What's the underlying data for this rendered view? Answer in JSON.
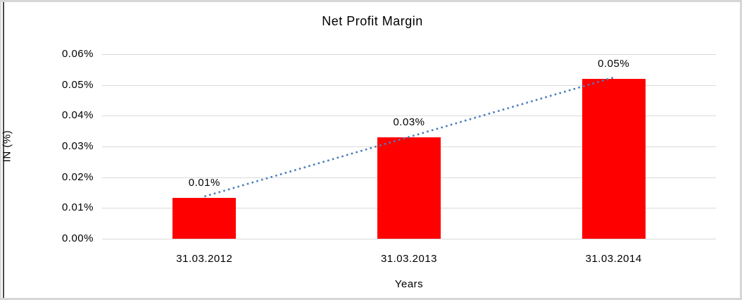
{
  "chart_data": {
    "type": "bar",
    "title": "Net Profit Margin",
    "xlabel": "Years",
    "ylabel": "IN (%)",
    "categories": [
      "31.03.2012",
      "31.03.2013",
      "31.03.2014"
    ],
    "values": [
      0.0133,
      0.033,
      0.052
    ],
    "bar_labels": [
      "0.01%",
      "0.03%",
      "0.05%"
    ],
    "y_ticks": [
      "0.06%",
      "0.05%",
      "0.04%",
      "0.03%",
      "0.02%",
      "0.01%",
      "0.00%"
    ],
    "ylim": [
      0,
      0.06
    ],
    "grid": true,
    "legend": "none",
    "colors": {
      "bar": "#ff0000",
      "trendline": "#4a7ebb",
      "gridline": "#d9d9d9",
      "text": "#000000",
      "frame_border": "#d6d6d6",
      "left_edge_line": "#4d4d4d"
    },
    "trendline": {
      "type": "linear",
      "style": "dotted"
    }
  }
}
